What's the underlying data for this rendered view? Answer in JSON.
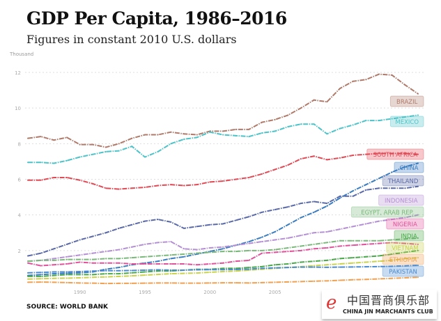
{
  "title": "GDP Per Capita, 1986–2016",
  "subtitle": "Figures in constant 2010 U.S. dollars",
  "source": "SOURCE: WORLD BANK",
  "watermark": {
    "logo": "e",
    "chinese": "中国晋商俱乐部",
    "english": "CHINA JIN MARCHANTS CLUB"
  },
  "chart_data": {
    "type": "line",
    "title": "GDP Per Capita, 1986–2016",
    "ylabel": "Thousand",
    "ylim": [
      0,
      12
    ],
    "yticks": [
      2,
      4,
      6,
      8,
      10,
      12
    ],
    "xticks": [
      1990,
      1995,
      2000,
      2005
    ],
    "grid": true,
    "legend": "inline-right",
    "x": [
      1986,
      1987,
      1988,
      1989,
      1990,
      1991,
      1992,
      1993,
      1994,
      1995,
      1996,
      1997,
      1998,
      1999,
      2000,
      2001,
      2002,
      2003,
      2004,
      2005,
      2006,
      2007,
      2008,
      2009,
      2010,
      2011,
      2012,
      2013,
      2014,
      2015,
      2016
    ],
    "series": [
      {
        "name": "BRAZIL",
        "color": "#b07a6a",
        "values": [
          8.3,
          8.4,
          8.2,
          8.35,
          7.95,
          7.95,
          7.8,
          8.0,
          8.3,
          8.5,
          8.5,
          8.65,
          8.55,
          8.5,
          8.7,
          8.7,
          8.8,
          8.8,
          9.2,
          9.35,
          9.6,
          10.0,
          10.45,
          10.35,
          11.1,
          11.5,
          11.6,
          11.9,
          11.85,
          11.3,
          10.8
        ]
      },
      {
        "name": "MEXICO",
        "color": "#4cc3c8",
        "values": [
          6.95,
          6.95,
          6.9,
          7.05,
          7.25,
          7.4,
          7.55,
          7.6,
          7.85,
          7.25,
          7.55,
          8.0,
          8.25,
          8.35,
          8.65,
          8.5,
          8.45,
          8.4,
          8.6,
          8.7,
          8.95,
          9.1,
          9.1,
          8.55,
          8.85,
          9.05,
          9.3,
          9.3,
          9.4,
          9.5,
          9.6
        ]
      },
      {
        "name": "SOUTH AFRICA",
        "color": "#e04a55",
        "values": [
          5.95,
          5.95,
          6.1,
          6.1,
          5.95,
          5.75,
          5.5,
          5.45,
          5.5,
          5.55,
          5.65,
          5.7,
          5.65,
          5.7,
          5.85,
          5.9,
          6.0,
          6.1,
          6.3,
          6.55,
          6.8,
          7.15,
          7.3,
          7.1,
          7.2,
          7.35,
          7.4,
          7.45,
          7.45,
          7.45,
          7.4
        ]
      },
      {
        "name": "CHINA",
        "color": "#3a7cc0",
        "values": [
          0.6,
          0.65,
          0.7,
          0.72,
          0.75,
          0.8,
          0.95,
          1.05,
          1.2,
          1.3,
          1.4,
          1.55,
          1.65,
          1.8,
          1.95,
          2.1,
          2.3,
          2.5,
          2.75,
          3.05,
          3.45,
          3.85,
          4.15,
          4.5,
          4.95,
          5.35,
          5.7,
          6.05,
          6.4,
          6.7,
          6.9
        ]
      },
      {
        "name": "THAILAND",
        "color": "#5a6aa8",
        "values": [
          1.7,
          1.85,
          2.1,
          2.35,
          2.6,
          2.8,
          3.0,
          3.25,
          3.45,
          3.65,
          3.75,
          3.6,
          3.25,
          3.35,
          3.45,
          3.5,
          3.7,
          3.9,
          4.15,
          4.3,
          4.45,
          4.65,
          4.75,
          4.65,
          5.05,
          5.05,
          5.4,
          5.5,
          5.5,
          5.5,
          5.6
        ]
      },
      {
        "name": "INDONESIA",
        "color": "#b58fd4",
        "values": [
          1.4,
          1.45,
          1.55,
          1.65,
          1.75,
          1.85,
          1.95,
          2.05,
          2.2,
          2.35,
          2.45,
          2.5,
          2.1,
          2.05,
          2.15,
          2.2,
          2.3,
          2.4,
          2.5,
          2.6,
          2.7,
          2.85,
          3.0,
          3.05,
          3.2,
          3.35,
          3.5,
          3.65,
          3.75,
          3.85,
          4.0
        ]
      },
      {
        "name": "EGYPT, ARAB REP.",
        "color": "#7ab87a",
        "values": [
          1.4,
          1.45,
          1.45,
          1.5,
          1.5,
          1.5,
          1.55,
          1.55,
          1.6,
          1.65,
          1.7,
          1.75,
          1.8,
          1.85,
          1.9,
          1.95,
          1.95,
          2.0,
          2.0,
          2.05,
          2.15,
          2.25,
          2.35,
          2.45,
          2.55,
          2.55,
          2.55,
          2.55,
          2.6,
          2.65,
          2.7
        ]
      },
      {
        "name": "NIGERIA",
        "color": "#e0529a",
        "values": [
          1.3,
          1.15,
          1.2,
          1.25,
          1.35,
          1.3,
          1.3,
          1.3,
          1.25,
          1.25,
          1.25,
          1.25,
          1.25,
          1.2,
          1.25,
          1.3,
          1.4,
          1.45,
          1.85,
          1.9,
          1.95,
          2.0,
          2.1,
          2.15,
          2.25,
          2.3,
          2.35,
          2.4,
          2.45,
          2.4,
          2.35
        ]
      },
      {
        "name": "INDIA",
        "color": "#4aa84a",
        "values": [
          0.55,
          0.55,
          0.6,
          0.65,
          0.65,
          0.65,
          0.7,
          0.7,
          0.75,
          0.8,
          0.85,
          0.85,
          0.9,
          0.95,
          0.95,
          1.0,
          1.0,
          1.05,
          1.1,
          1.2,
          1.25,
          1.35,
          1.4,
          1.45,
          1.55,
          1.6,
          1.65,
          1.7,
          1.8,
          1.9,
          2.0
        ]
      },
      {
        "name": "VIETNAM",
        "color": "#c8d24a",
        "values": [
          0.4,
          0.42,
          0.44,
          0.45,
          0.47,
          0.5,
          0.52,
          0.55,
          0.58,
          0.62,
          0.66,
          0.7,
          0.72,
          0.74,
          0.78,
          0.82,
          0.85,
          0.9,
          0.95,
          1.0,
          1.05,
          1.1,
          1.15,
          1.2,
          1.25,
          1.3,
          1.35,
          1.4,
          1.45,
          1.55,
          1.6
        ]
      },
      {
        "name": "ETHIOPIA",
        "color": "#f0a050",
        "values": [
          0.22,
          0.23,
          0.22,
          0.2,
          0.18,
          0.17,
          0.15,
          0.16,
          0.16,
          0.17,
          0.18,
          0.18,
          0.17,
          0.17,
          0.18,
          0.19,
          0.19,
          0.18,
          0.2,
          0.22,
          0.24,
          0.26,
          0.28,
          0.3,
          0.33,
          0.36,
          0.38,
          0.41,
          0.44,
          0.47,
          0.5
        ]
      },
      {
        "name": "PAKISTAN",
        "color": "#4a8ad0",
        "values": [
          0.75,
          0.77,
          0.8,
          0.8,
          0.82,
          0.85,
          0.87,
          0.87,
          0.88,
          0.9,
          0.92,
          0.9,
          0.9,
          0.92,
          0.93,
          0.93,
          0.94,
          0.96,
          1.0,
          1.03,
          1.05,
          1.07,
          1.07,
          1.06,
          1.07,
          1.08,
          1.09,
          1.1,
          1.12,
          1.14,
          1.17
        ]
      }
    ]
  }
}
